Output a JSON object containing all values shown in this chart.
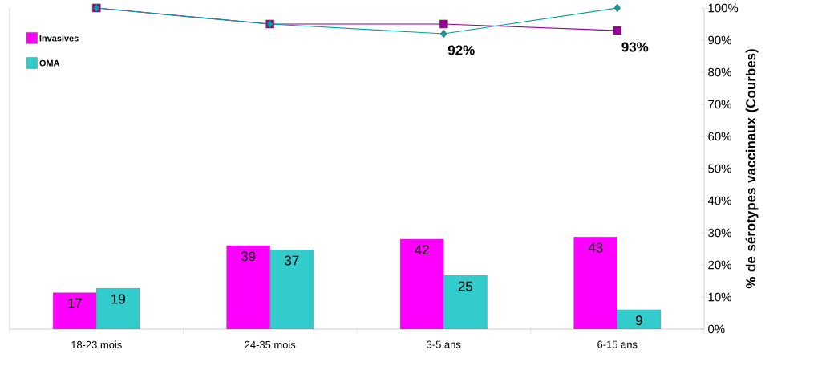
{
  "chart_data": {
    "type": "bar",
    "categories": [
      "18-23 mois",
      "24-35 mois",
      "3-5 ans",
      "6-15 ans"
    ],
    "ylim": [
      0,
      150
    ],
    "y2lim": [
      0,
      100
    ],
    "y2ticks": [
      {
        "value": 0,
        "label": "0%"
      },
      {
        "value": 10,
        "label": "10%"
      },
      {
        "value": 20,
        "label": "20%"
      },
      {
        "value": 30,
        "label": "30%"
      },
      {
        "value": 40,
        "label": "40%"
      },
      {
        "value": 50,
        "label": "50%"
      },
      {
        "value": 60,
        "label": "60%"
      },
      {
        "value": 70,
        "label": "70%"
      },
      {
        "value": 80,
        "label": "80%"
      },
      {
        "value": 90,
        "label": "90%"
      },
      {
        "value": 100,
        "label": "100%"
      }
    ],
    "y2label": "% de sérotypes vaccinaux (Courbes)",
    "legend": "top left",
    "series": [
      {
        "name": "Invasives",
        "color": "#ff00ff",
        "values": [
          17,
          39,
          42,
          43
        ],
        "value_labels": [
          "17",
          "39",
          "42",
          "43"
        ]
      },
      {
        "name": "OMA",
        "color": "#33cccc",
        "values": [
          19,
          37,
          25,
          9
        ],
        "value_labels": [
          "19",
          "37",
          "25",
          "9"
        ]
      },
      {
        "type": "line",
        "axis": "y2",
        "color": "#990099",
        "marker": "square",
        "values": [
          100,
          95,
          95,
          93
        ],
        "value_labels": [
          null,
          null,
          null,
          "93%"
        ]
      },
      {
        "type": "line",
        "axis": "y2",
        "color": "#00a0a0",
        "marker": "diamond",
        "values": [
          100,
          95,
          92,
          100
        ],
        "value_labels": [
          null,
          null,
          "92%",
          null
        ]
      }
    ]
  }
}
